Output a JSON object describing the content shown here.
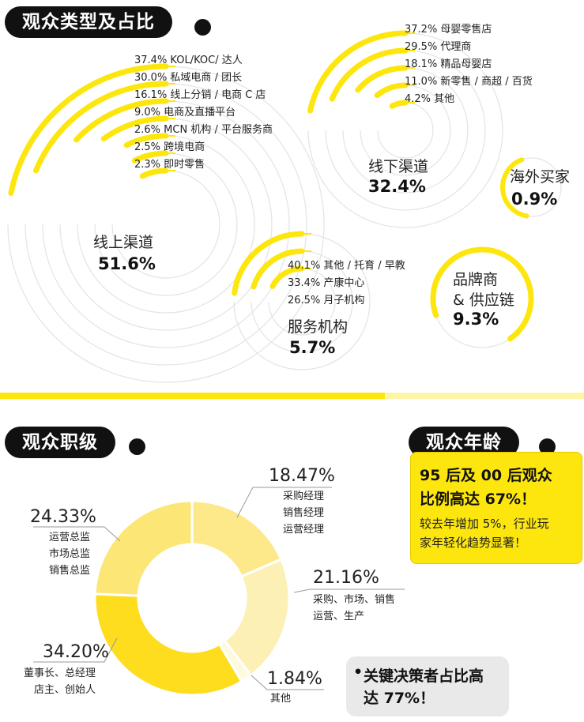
{
  "colors": {
    "accent": "#fde60e",
    "dark": "#111111",
    "track": "#e5e5e5",
    "donut": [
      "#fde98a",
      "#fdf0b5",
      "#fdfade",
      "#fddd1e",
      "#fce676"
    ]
  },
  "section1": {
    "title": "观众类型及占比"
  },
  "section2": {
    "title": "观众职级"
  },
  "section3": {
    "title": "观众年龄",
    "headline": [
      "95 后及 00 后观众",
      "比例高达 67%！"
    ],
    "body": [
      "较去年增加 5%，行业玩",
      "家年轻化趋势显著！"
    ]
  },
  "keynote": {
    "bullet": "•",
    "lines": [
      "关键决策者占比高",
      "达 77%！"
    ]
  },
  "chart_data": [
    {
      "type": "radial-bar",
      "title": "观众类型及占比",
      "groups": [
        {
          "name": "线上渠道",
          "value": "51.6%",
          "items": [
            {
              "label": "37.4% KOL/KOC/ 达人",
              "value": 37.4
            },
            {
              "label": "30.0% 私域电商 / 团长",
              "value": 30.0
            },
            {
              "label": "16.1% 线上分销 / 电商 C 店",
              "value": 16.1
            },
            {
              "label": "9.0% 电商及直播平台",
              "value": 9.0
            },
            {
              "label": "2.6% MCN 机构 / 平台服务商",
              "value": 2.6
            },
            {
              "label": "2.5% 跨境电商",
              "value": 2.5
            },
            {
              "label": "2.3% 即时零售",
              "value": 2.3
            }
          ]
        },
        {
          "name": "线下渠道",
          "value": "32.4%",
          "items": [
            {
              "label": "37.2% 母婴零售店",
              "value": 37.2
            },
            {
              "label": "29.5% 代理商",
              "value": 29.5
            },
            {
              "label": "18.1% 精品母婴店",
              "value": 18.1
            },
            {
              "label": "11.0% 新零售 / 商超 / 百货",
              "value": 11.0
            },
            {
              "label": "4.2% 其他",
              "value": 4.2
            }
          ]
        },
        {
          "name": "服务机构",
          "value": "5.7%",
          "items": [
            {
              "label": "40.1% 其他 / 托育 / 早教",
              "value": 40.1
            },
            {
              "label": "33.4% 产康中心",
              "value": 33.4
            },
            {
              "label": "26.5% 月子机构",
              "value": 26.5
            }
          ]
        },
        {
          "name": "海外买家",
          "value": "0.9%",
          "items": []
        },
        {
          "name": "品牌商\n& 供应链",
          "value": "9.3%",
          "items": []
        }
      ]
    },
    {
      "type": "pie",
      "title": "观众职级",
      "slices": [
        {
          "pct": "18.47%",
          "value": 18.47,
          "roles": [
            "采购经理",
            "销售经理",
            "运营经理"
          ]
        },
        {
          "pct": "21.16%",
          "value": 21.16,
          "roles": [
            "采购、市场、销售",
            "运营、生产"
          ]
        },
        {
          "pct": "1.84%",
          "value": 1.84,
          "roles": [
            "其他"
          ]
        },
        {
          "pct": "34.20%",
          "value": 34.2,
          "roles": [
            "董事长、总经理",
            "店主、创始人"
          ]
        },
        {
          "pct": "24.33%",
          "value": 24.33,
          "roles": [
            "运营总监",
            "市场总监",
            "销售总监"
          ]
        }
      ]
    }
  ]
}
